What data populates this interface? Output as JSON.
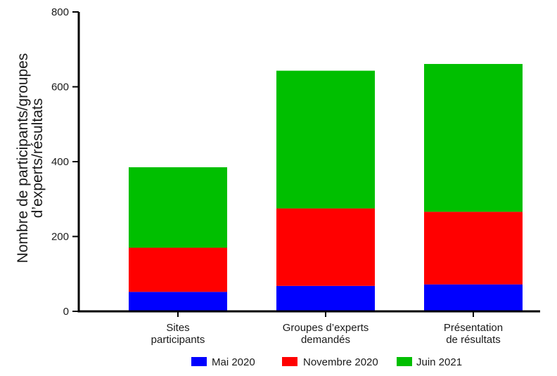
{
  "chart_data": {
    "type": "bar",
    "stacked": true,
    "categories": [
      [
        "Sites",
        "participants"
      ],
      [
        "Groupes d’experts",
        "demandés"
      ],
      [
        "Présentation",
        "de résultats"
      ]
    ],
    "series": [
      {
        "name": "Mai 2020",
        "color": "#0000ff",
        "values": [
          52,
          68,
          72
        ]
      },
      {
        "name": "Novembre 2020",
        "color": "#ff0000",
        "values": [
          118,
          207,
          194
        ]
      },
      {
        "name": "Juin 2021",
        "color": "#00bf00",
        "values": [
          215,
          368,
          395
        ]
      }
    ],
    "ylabel": [
      "Nombre de participants/groupes",
      "d’experts/résultats"
    ],
    "xlabel": "",
    "ylim": [
      0,
      800
    ],
    "yticks": [
      0,
      200,
      400,
      600,
      800
    ],
    "grid": false,
    "legend_position": "bottom-center"
  }
}
